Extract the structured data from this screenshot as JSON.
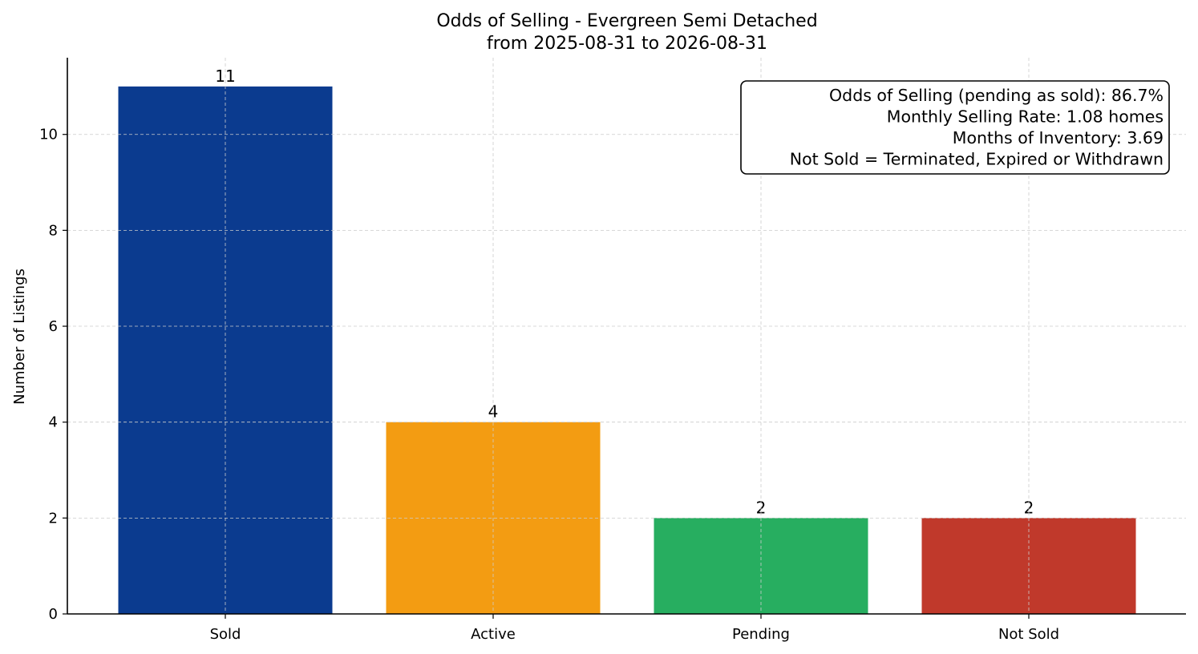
{
  "chart_data": {
    "type": "bar",
    "title": "Odds of Selling - Evergreen Semi Detached",
    "subtitle": "from 2025-08-31 to 2026-08-31",
    "xlabel": "",
    "ylabel": "Number of Listings",
    "categories": [
      "Sold",
      "Active",
      "Pending",
      "Not Sold"
    ],
    "values": [
      11,
      4,
      2,
      2
    ],
    "colors": [
      "#0b3b8f",
      "#f39c12",
      "#27ae60",
      "#c0392b"
    ],
    "ylim": [
      0,
      11.6
    ],
    "yticks": [
      0,
      2,
      4,
      6,
      8,
      10
    ],
    "grid": true,
    "legend": "none",
    "annotation_box": {
      "placement": "top-right",
      "lines": [
        "Odds of Selling (pending as sold): 86.7%",
        "Monthly Selling Rate: 1.08 homes",
        "Months of Inventory: 3.69",
        "Not Sold = Terminated, Expired or Withdrawn"
      ]
    }
  }
}
